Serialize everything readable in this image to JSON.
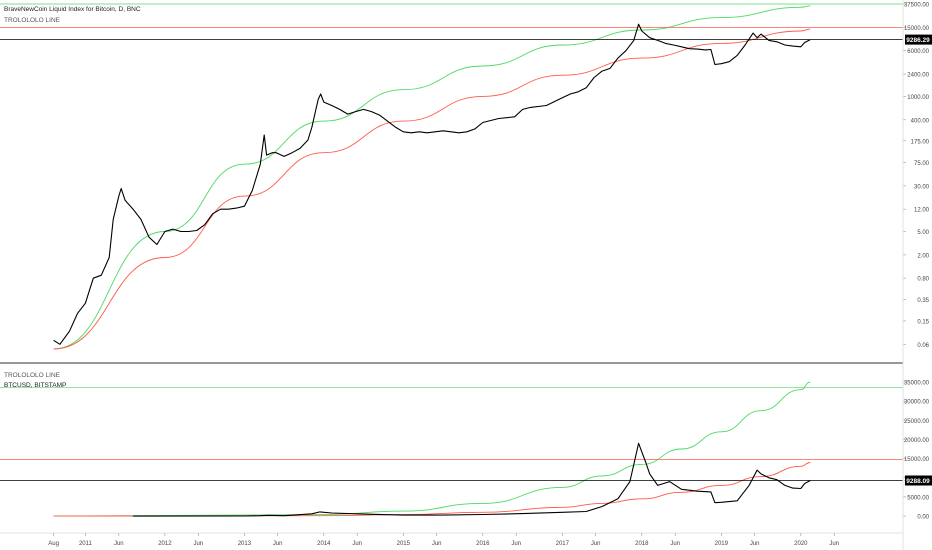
{
  "top_panel": {
    "title": "BraveNewCoin Liquid Index for Bitcoin, D, BNC",
    "indicator": "TROLOLOLO LINE",
    "last_price": "9286.29"
  },
  "bottom_panel": {
    "indicator": "TROLOLOLO LINE",
    "title": "BTCUSD, BITSTAMP",
    "last_price": "9288.09"
  },
  "colors": {
    "price": "#000000",
    "upper_band": "#4cd964",
    "lower_band": "#ff5a4c",
    "grid_divider": "#333333",
    "axis_text": "#444444"
  },
  "chart_data": [
    {
      "type": "line",
      "title": "BraveNewCoin Liquid Index for Bitcoin, D, BNC",
      "yscale": "log",
      "y_tick_labels": [
        "37500.00",
        "15000.00",
        "6000.00",
        "2400.00",
        "1000.00",
        "400.00",
        "175.00",
        "75.00",
        "30.00",
        "12.00",
        "5.00",
        "2.00",
        "0.80",
        "0.35",
        "0.15",
        "0.06"
      ],
      "y_ticks": [
        37500,
        15000,
        6000,
        2400,
        1000,
        400,
        175,
        75,
        30,
        12,
        5,
        2,
        0.8,
        0.35,
        0.15,
        0.06
      ],
      "ylim": [
        0.035,
        37500
      ],
      "xlim": [
        2010.58,
        2020.72
      ],
      "series": [
        {
          "values_x": [
            2010.6,
            2010.68,
            2010.8,
            2010.9,
            2011.0,
            2011.1,
            2011.2,
            2011.3,
            2011.35,
            2011.42,
            2011.45,
            2011.5,
            2011.6,
            2011.7,
            2011.8,
            2011.9,
            2012.0,
            2012.1,
            2012.2,
            2012.3,
            2012.4,
            2012.5,
            2012.6,
            2012.7,
            2012.8,
            2012.9,
            2013.0,
            2013.1,
            2013.2,
            2013.25,
            2013.28,
            2013.35,
            2013.4,
            2013.5,
            2013.6,
            2013.7,
            2013.8,
            2013.85,
            2013.9,
            2013.93,
            2013.96,
            2014.0,
            2014.1,
            2014.2,
            2014.3,
            2014.4,
            2014.5,
            2014.6,
            2014.7,
            2014.8,
            2014.9,
            2015.0,
            2015.1,
            2015.2,
            2015.3,
            2015.5,
            2015.7,
            2015.8,
            2015.9,
            2016.0,
            2016.2,
            2016.4,
            2016.5,
            2016.6,
            2016.8,
            2017.0,
            2017.1,
            2017.2,
            2017.3,
            2017.4,
            2017.5,
            2017.6,
            2017.7,
            2017.8,
            2017.9,
            2017.96,
            2018.0,
            2018.1,
            2018.2,
            2018.3,
            2018.4,
            2018.5,
            2018.6,
            2018.7,
            2018.8,
            2018.87,
            2018.92,
            2019.0,
            2019.1,
            2019.2,
            2019.3,
            2019.4,
            2019.45,
            2019.5,
            2019.6,
            2019.7,
            2019.8,
            2019.9,
            2020.0,
            2020.05,
            2020.12
          ],
          "values_y": [
            0.07,
            0.06,
            0.1,
            0.2,
            0.3,
            0.8,
            0.9,
            1.8,
            8,
            20,
            27,
            17,
            12,
            8,
            4,
            3,
            5,
            5.5,
            5,
            5,
            5.2,
            6.5,
            10,
            12,
            12,
            12.5,
            13.5,
            25,
            70,
            220,
            100,
            110,
            110,
            95,
            110,
            130,
            180,
            300,
            600,
            900,
            1100,
            800,
            700,
            600,
            500,
            550,
            600,
            550,
            480,
            380,
            300,
            250,
            240,
            250,
            240,
            260,
            240,
            250,
            280,
            360,
            420,
            450,
            600,
            650,
            700,
            950,
            1100,
            1200,
            1400,
            2100,
            2700,
            3000,
            4500,
            6000,
            9000,
            17000,
            13000,
            10000,
            9000,
            8000,
            7500,
            7000,
            6500,
            6400,
            6200,
            6300,
            3500,
            3600,
            3900,
            5000,
            7500,
            12000,
            10000,
            11500,
            9000,
            8500,
            7500,
            7200,
            7000,
            8300,
            9286
          ]
        }
      ],
      "bands": {
        "upper": {
          "x": [
            2010.6,
            2012.0,
            2013.0,
            2014.0,
            2015.0,
            2016.0,
            2017.0,
            2018.0,
            2019.0,
            2020.0,
            2020.12
          ],
          "y": [
            0.05,
            5,
            70,
            380,
            1300,
            3300,
            7500,
            13500,
            22000,
            33000,
            35000
          ]
        },
        "lower": {
          "x": [
            2010.6,
            2012.0,
            2013.0,
            2014.0,
            2015.0,
            2016.0,
            2017.0,
            2018.0,
            2019.0,
            2020.0,
            2020.12
          ],
          "y": [
            0.05,
            1.8,
            20,
            110,
            380,
            1000,
            2300,
            4500,
            8000,
            13000,
            14000
          ]
        }
      },
      "hlines": [
        37500,
        15000,
        9286.29
      ]
    },
    {
      "type": "line",
      "title": "BTCUSD, BITSTAMP",
      "yscale": "linear",
      "y_tick_labels": [
        "35000.00",
        "30000.00",
        "25000.00",
        "20000.00",
        "15000.00",
        "10000.00",
        "5000.00",
        "0.00"
      ],
      "y_ticks": [
        35000,
        30000,
        25000,
        20000,
        15000,
        10000,
        5000,
        0
      ],
      "ylim": [
        -500,
        35000
      ],
      "xlim": [
        2010.58,
        2020.72
      ],
      "series": [
        {
          "values_x": [
            2011.6,
            2013.0,
            2013.2,
            2013.3,
            2013.5,
            2013.85,
            2013.95,
            2014.1,
            2014.4,
            2014.8,
            2015.0,
            2015.5,
            2016.0,
            2016.5,
            2017.0,
            2017.3,
            2017.5,
            2017.7,
            2017.85,
            2017.96,
            2018.05,
            2018.1,
            2018.2,
            2018.35,
            2018.5,
            2018.7,
            2018.87,
            2018.92,
            2019.0,
            2019.2,
            2019.35,
            2019.45,
            2019.5,
            2019.6,
            2019.7,
            2019.8,
            2019.9,
            2020.0,
            2020.05,
            2020.12
          ],
          "values_y": [
            5,
            15,
            100,
            200,
            100,
            600,
            1100,
            800,
            600,
            350,
            250,
            250,
            420,
            650,
            1000,
            1200,
            2500,
            4500,
            9000,
            19000,
            14000,
            11000,
            8000,
            9000,
            7000,
            6500,
            6300,
            3500,
            3600,
            4000,
            8000,
            12000,
            11000,
            10000,
            9500,
            8000,
            7300,
            7200,
            8500,
            9288
          ]
        }
      ],
      "bands": {
        "upper": {
          "x": [
            2010.6,
            2014.0,
            2015.0,
            2016.0,
            2017.0,
            2017.5,
            2018.0,
            2018.5,
            2019.0,
            2019.5,
            2020.0,
            2020.12
          ],
          "y": [
            0,
            380,
            1300,
            3300,
            7500,
            10500,
            13500,
            17500,
            22000,
            27500,
            33000,
            35000
          ]
        },
        "lower": {
          "x": [
            2010.6,
            2014.0,
            2015.0,
            2016.0,
            2017.0,
            2017.5,
            2018.0,
            2018.5,
            2019.0,
            2019.5,
            2020.0,
            2020.12
          ],
          "y": [
            0,
            110,
            380,
            1000,
            2300,
            3300,
            4500,
            6200,
            8000,
            10300,
            13000,
            14000
          ]
        }
      },
      "hlines": [
        33500,
        14800,
        9288.09
      ]
    }
  ],
  "x_axis": {
    "ticks": [
      {
        "x": 2010.6,
        "label": "Aug"
      },
      {
        "x": 2011.0,
        "label": "2011"
      },
      {
        "x": 2011.42,
        "label": "Jun"
      },
      {
        "x": 2012.0,
        "label": "2012"
      },
      {
        "x": 2012.42,
        "label": "Jun"
      },
      {
        "x": 2013.0,
        "label": "2013"
      },
      {
        "x": 2013.42,
        "label": "Jun"
      },
      {
        "x": 2014.0,
        "label": "2014"
      },
      {
        "x": 2014.42,
        "label": "Jun"
      },
      {
        "x": 2015.0,
        "label": "2015"
      },
      {
        "x": 2015.42,
        "label": "Jun"
      },
      {
        "x": 2016.0,
        "label": "2016"
      },
      {
        "x": 2016.42,
        "label": "Jun"
      },
      {
        "x": 2017.0,
        "label": "2017"
      },
      {
        "x": 2017.42,
        "label": "Jun"
      },
      {
        "x": 2018.0,
        "label": "2018"
      },
      {
        "x": 2018.42,
        "label": "Jun"
      },
      {
        "x": 2019.0,
        "label": "2019"
      },
      {
        "x": 2019.42,
        "label": "Jun"
      },
      {
        "x": 2020.0,
        "label": "2020"
      },
      {
        "x": 2020.42,
        "label": "Jun"
      }
    ]
  }
}
